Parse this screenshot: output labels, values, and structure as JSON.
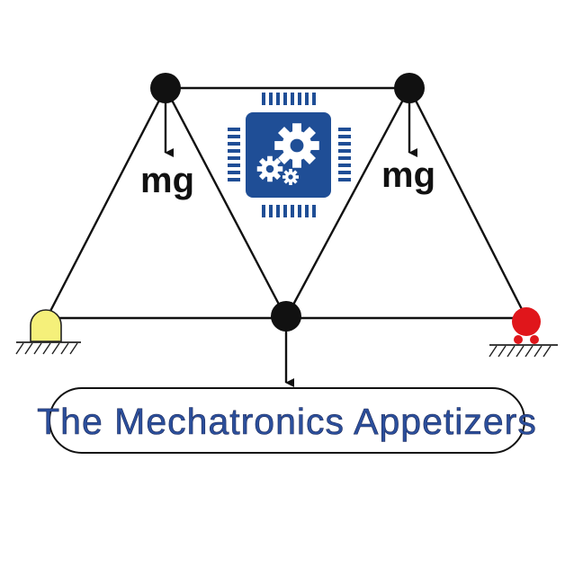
{
  "truss": {
    "load_label_left": "mg",
    "load_label_right": "mg"
  },
  "logo": {
    "icon": "chip-gears-icon",
    "color": "#1f4e96"
  },
  "supports": {
    "left": {
      "type": "pin",
      "color": "#f5f07a"
    },
    "right": {
      "type": "roller",
      "color": "#e0161b"
    }
  },
  "banner": {
    "title": "The Mechatronics Appetizers",
    "text_color": "#2b4f9c"
  }
}
